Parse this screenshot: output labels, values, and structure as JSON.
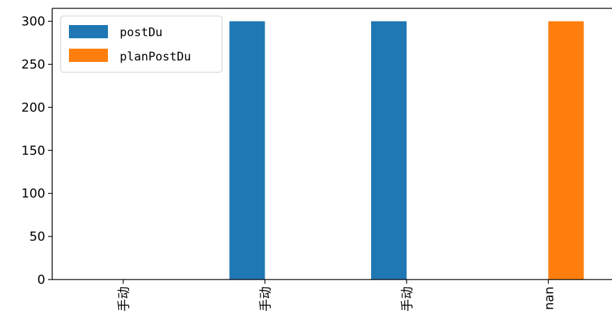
{
  "chart_data": {
    "type": "bar",
    "categories": [
      "手动",
      "手动",
      "手动",
      "nan"
    ],
    "series": [
      {
        "name": "postDu",
        "color": "#1f77b4",
        "values": [
          0,
          300,
          300,
          0
        ]
      },
      {
        "name": "planPostDu",
        "color": "#ff7f0e",
        "values": [
          0,
          0,
          0,
          300
        ]
      }
    ],
    "yticks": [
      "0",
      "50",
      "100",
      "150",
      "200",
      "250",
      "300"
    ],
    "ylim": [
      0,
      315
    ],
    "title": "",
    "xlabel": "",
    "ylabel": "",
    "grid": false,
    "legend": "top-left"
  }
}
